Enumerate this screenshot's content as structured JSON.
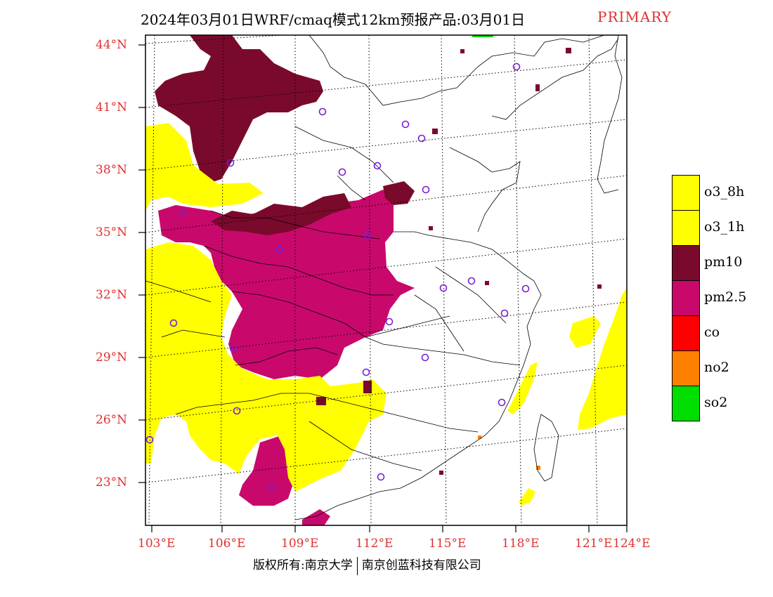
{
  "title": {
    "main": "2024年03月01日WRF/cmaq模式12km预报产品:03月01日",
    "tag": "PRIMARY"
  },
  "axes": {
    "lat_labels": [
      "44°N",
      "41°N",
      "38°N",
      "35°N",
      "32°N",
      "29°N",
      "26°N",
      "23°N"
    ],
    "lon_labels": [
      "103°E",
      "106°E",
      "109°E",
      "112°E",
      "115°E",
      "118°E",
      "121°E",
      "124°E"
    ]
  },
  "legend": [
    {
      "label": "o3_8h",
      "color": "#ffff00"
    },
    {
      "label": "o3_1h",
      "color": "#ffff00"
    },
    {
      "label": "pm10",
      "color": "#7a0a2c"
    },
    {
      "label": "pm2.5",
      "color": "#c8096b"
    },
    {
      "label": "co",
      "color": "#ff0000"
    },
    {
      "label": "no2",
      "color": "#ff7f00"
    },
    {
      "label": "so2",
      "color": "#00dd00"
    }
  ],
  "credit": {
    "left": "版权所有:南京大学",
    "right": "南京创蓝科技有限公司"
  },
  "colors": {
    "axis_label": "#e03030",
    "station_marker": "#7a1fd0",
    "o3": "#ffff00",
    "pm10": "#7a0a2c",
    "pm25": "#c8096b"
  }
}
